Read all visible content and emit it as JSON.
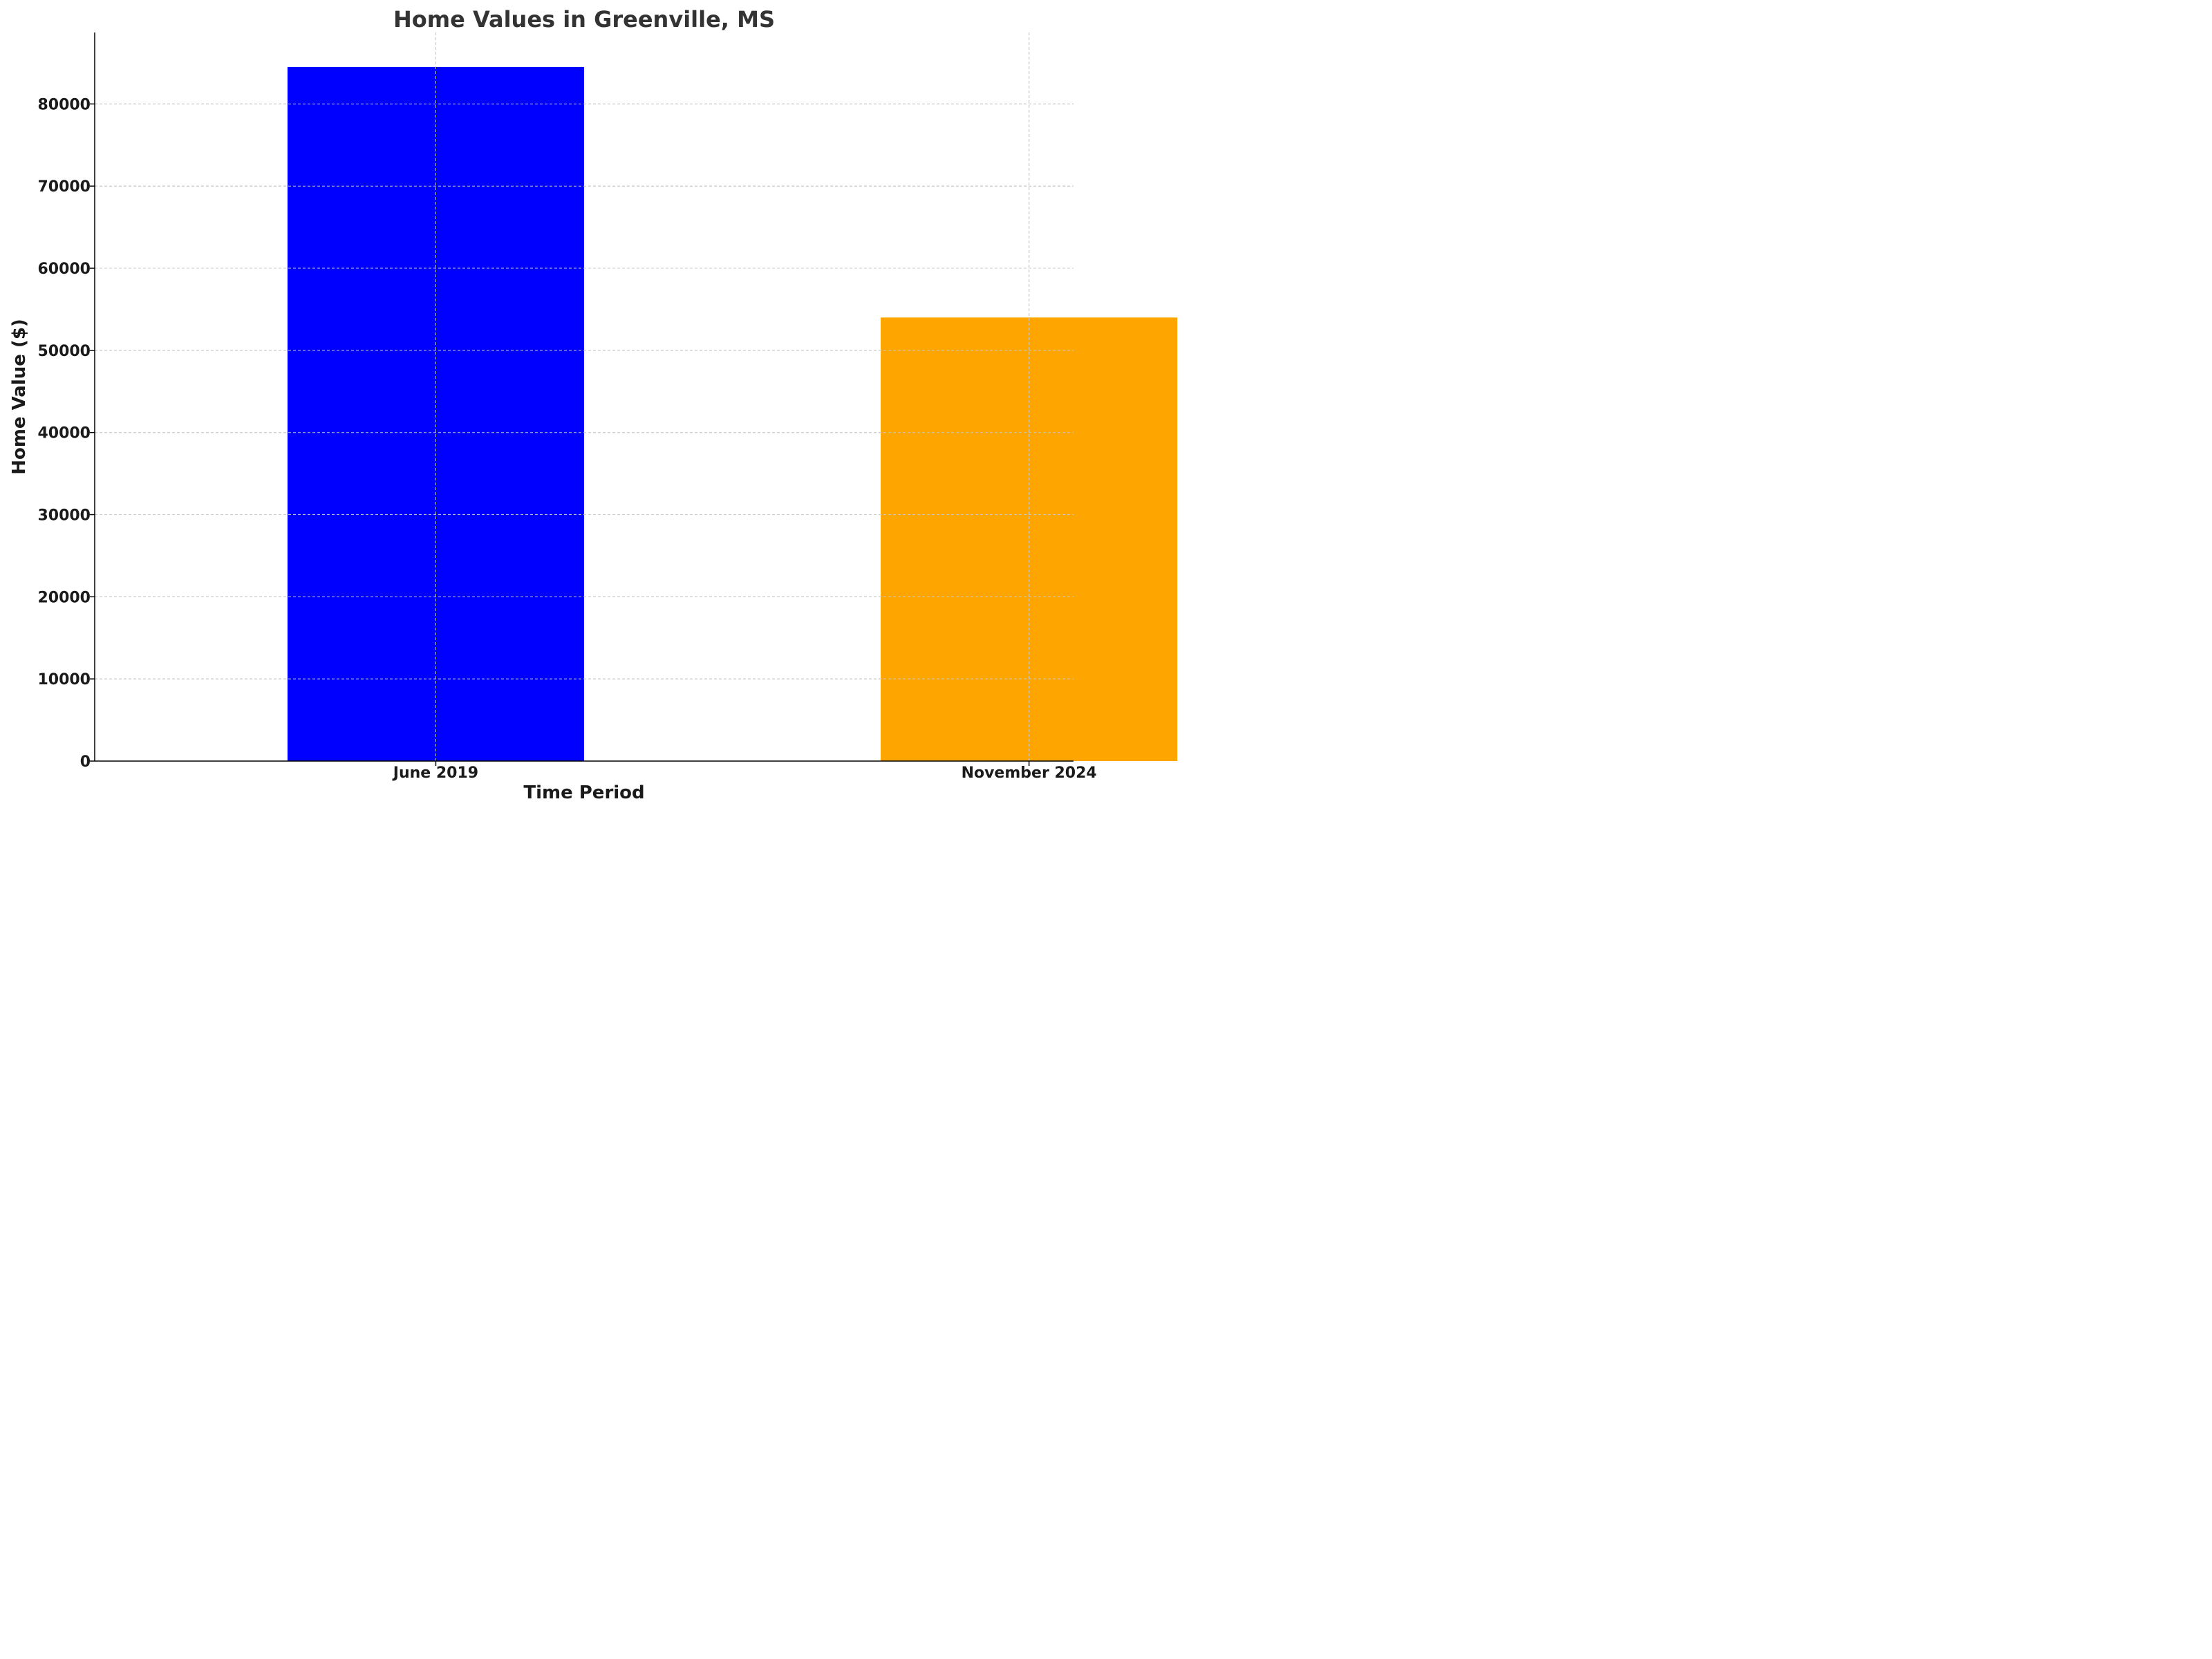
{
  "chart_data": {
    "type": "bar",
    "title": "Home Values in Greenville, MS",
    "xlabel": "Time Period",
    "ylabel": "Home Value ($)",
    "categories": [
      "June 2019",
      "November 2024"
    ],
    "values": [
      84500,
      54000
    ],
    "colors": [
      "#0000ff",
      "#ffa500"
    ],
    "ylim": [
      0,
      88700
    ],
    "yticks": [
      0,
      10000,
      20000,
      30000,
      40000,
      50000,
      60000,
      70000,
      80000
    ],
    "grid": true
  }
}
